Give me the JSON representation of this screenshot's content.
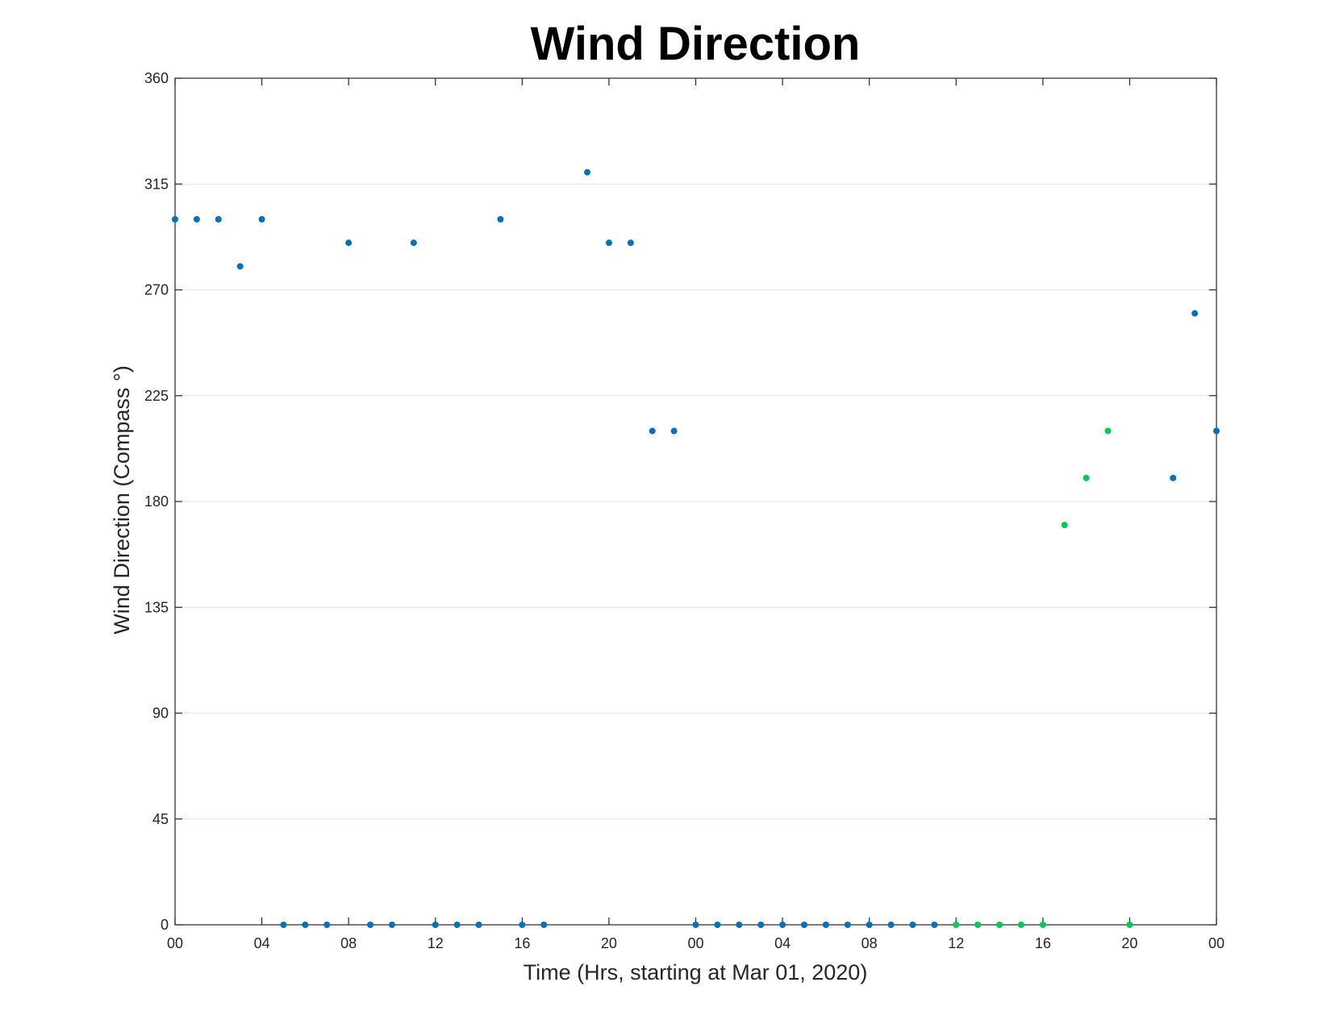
{
  "chart_data": {
    "type": "scatter",
    "title": "Wind Direction",
    "xlabel": "Time (Hrs, starting at Mar 01, 2020)",
    "ylabel": "Wind Direction (Compass °)",
    "x_unit": "hours",
    "xlim": [
      0,
      48
    ],
    "ylim": [
      0,
      360
    ],
    "yticks": [
      0,
      45,
      90,
      135,
      180,
      225,
      270,
      315,
      360
    ],
    "xticks": [
      {
        "value": 0,
        "label": "00"
      },
      {
        "value": 4,
        "label": "04"
      },
      {
        "value": 8,
        "label": "08"
      },
      {
        "value": 12,
        "label": "12"
      },
      {
        "value": 16,
        "label": "16"
      },
      {
        "value": 20,
        "label": "20"
      },
      {
        "value": 24,
        "label": "00"
      },
      {
        "value": 28,
        "label": "04"
      },
      {
        "value": 32,
        "label": "08"
      },
      {
        "value": 36,
        "label": "12"
      },
      {
        "value": 40,
        "label": "16"
      },
      {
        "value": 44,
        "label": "20"
      },
      {
        "value": 48,
        "label": "00"
      }
    ],
    "grid": true,
    "series": [
      {
        "color": "#0072bd",
        "points": [
          [
            0,
            300
          ],
          [
            1,
            300
          ],
          [
            2,
            300
          ],
          [
            3,
            280
          ],
          [
            4,
            300
          ],
          [
            5,
            0
          ],
          [
            6,
            0
          ],
          [
            7,
            0
          ],
          [
            8,
            290
          ],
          [
            9,
            0
          ],
          [
            10,
            0
          ],
          [
            11,
            290
          ],
          [
            12,
            0
          ],
          [
            13,
            0
          ],
          [
            14,
            0
          ],
          [
            15,
            300
          ],
          [
            16,
            0
          ],
          [
            17,
            0
          ],
          [
            19,
            320
          ],
          [
            20,
            290
          ],
          [
            21,
            290
          ],
          [
            22,
            210
          ],
          [
            23,
            210
          ],
          [
            24,
            0
          ],
          [
            25,
            0
          ],
          [
            26,
            0
          ],
          [
            27,
            0
          ],
          [
            28,
            0
          ],
          [
            29,
            0
          ],
          [
            30,
            0
          ],
          [
            31,
            0
          ],
          [
            32,
            0
          ],
          [
            33,
            0
          ],
          [
            34,
            0
          ],
          [
            35,
            0
          ],
          [
            46,
            190
          ],
          [
            47,
            260
          ],
          [
            48,
            210
          ]
        ]
      },
      {
        "color": "#00cc55",
        "points": [
          [
            36,
            0
          ],
          [
            37,
            0
          ],
          [
            38,
            0
          ],
          [
            39,
            0
          ],
          [
            40,
            0
          ],
          [
            41,
            170
          ],
          [
            42,
            190
          ],
          [
            43,
            210
          ],
          [
            44,
            0
          ]
        ]
      }
    ]
  }
}
